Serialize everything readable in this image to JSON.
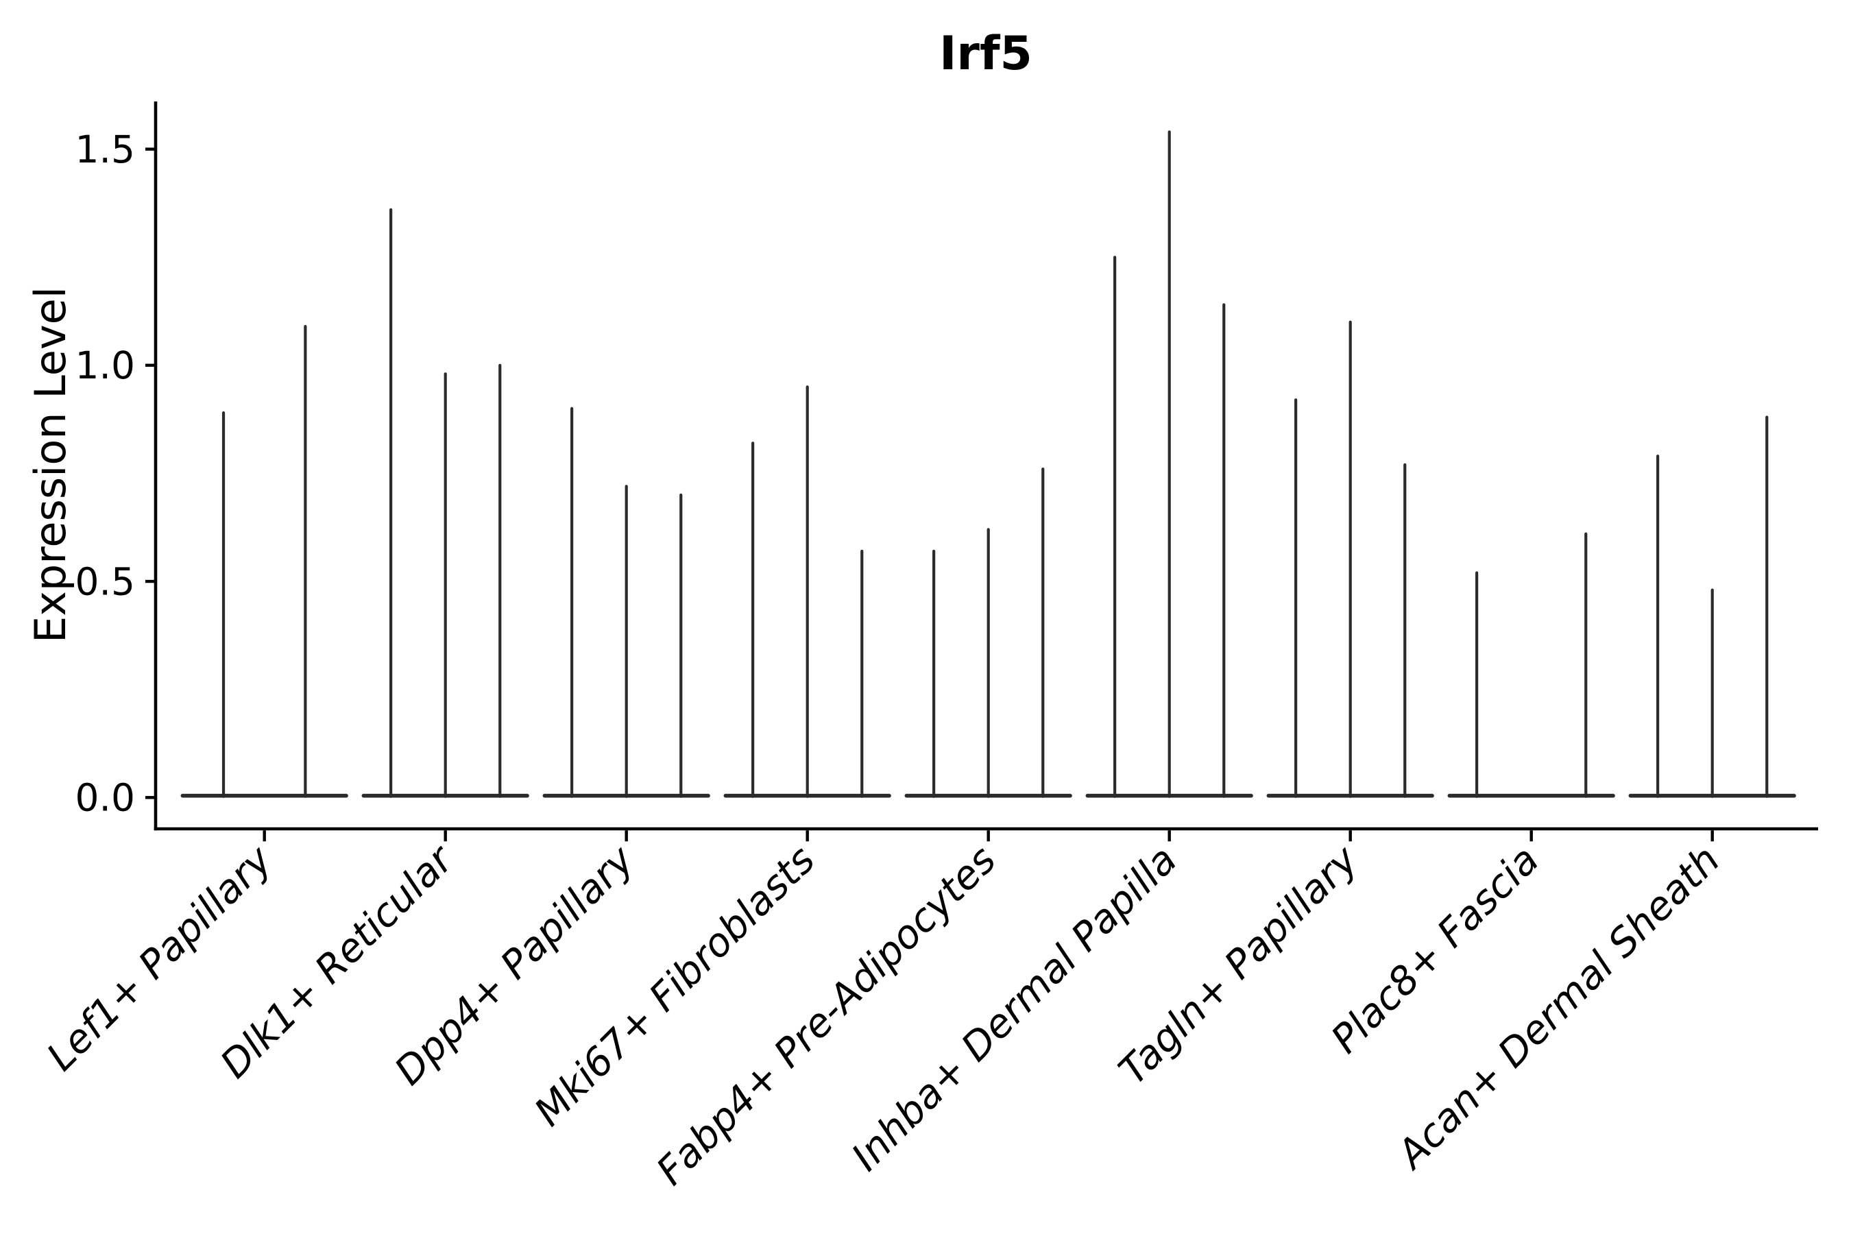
{
  "figure": {
    "background": "#ffffff"
  },
  "style": {
    "violin_color": "#2b2b2b",
    "axis_color": "#000000",
    "text_color": "#000000"
  },
  "chart_data": {
    "type": "violin",
    "title": "Irf5",
    "ylabel": "Expression Level",
    "xlabel": "",
    "ylim": [
      -0.07,
      1.61
    ],
    "yticks": [
      {
        "value": 0.0,
        "label": "0.0"
      },
      {
        "value": 0.5,
        "label": "0.5"
      },
      {
        "value": 1.0,
        "label": "1.0"
      },
      {
        "value": 1.5,
        "label": "1.5"
      }
    ],
    "grid": false,
    "legend_position": "none",
    "x_tick_rotation_deg": 45,
    "categories": [
      "Lef1+ Papillary",
      "Dlk1+ Reticular",
      "Dpp4+ Papillary",
      "Mki67+ Fibroblasts",
      "Fabp4+ Pre-Adipocytes",
      "Inhba+ Dermal Papilla",
      "Tagln+ Papillary",
      "Plac8+ Fascia",
      "Acan+ Dermal Sheath"
    ],
    "description": "Violin plot of Irf5 expression; each category holds 2-3 dodged violins collapsed to a flat baseline at 0 with a thin density spike rising to the max expression value.",
    "series_per_category": [
      {
        "label": "Lef1+ Papillary",
        "n_violins": 2,
        "spike_max_values": [
          0.89,
          1.09
        ]
      },
      {
        "label": "Dlk1+ Reticular",
        "n_violins": 3,
        "spike_max_values": [
          1.36,
          0.98,
          1.0
        ]
      },
      {
        "label": "Dpp4+ Papillary",
        "n_violins": 3,
        "spike_max_values": [
          0.9,
          0.72,
          0.7
        ]
      },
      {
        "label": "Mki67+ Fibroblasts",
        "n_violins": 3,
        "spike_max_values": [
          0.82,
          0.95,
          0.57
        ]
      },
      {
        "label": "Fabp4+ Pre-Adipocytes",
        "n_violins": 3,
        "spike_max_values": [
          0.57,
          0.62,
          0.76
        ]
      },
      {
        "label": "Inhba+ Dermal Papilla",
        "n_violins": 3,
        "spike_max_values": [
          1.25,
          1.54,
          1.14
        ]
      },
      {
        "label": "Tagln+ Papillary",
        "n_violins": 3,
        "spike_max_values": [
          0.92,
          1.1,
          0.77
        ]
      },
      {
        "label": "Plac8+ Fascia",
        "n_violins": 3,
        "spike_max_values": [
          0.52,
          null,
          0.61
        ]
      },
      {
        "label": "Acan+ Dermal Sheath",
        "n_violins": 3,
        "spike_max_values": [
          0.79,
          0.48,
          0.88
        ]
      }
    ]
  }
}
